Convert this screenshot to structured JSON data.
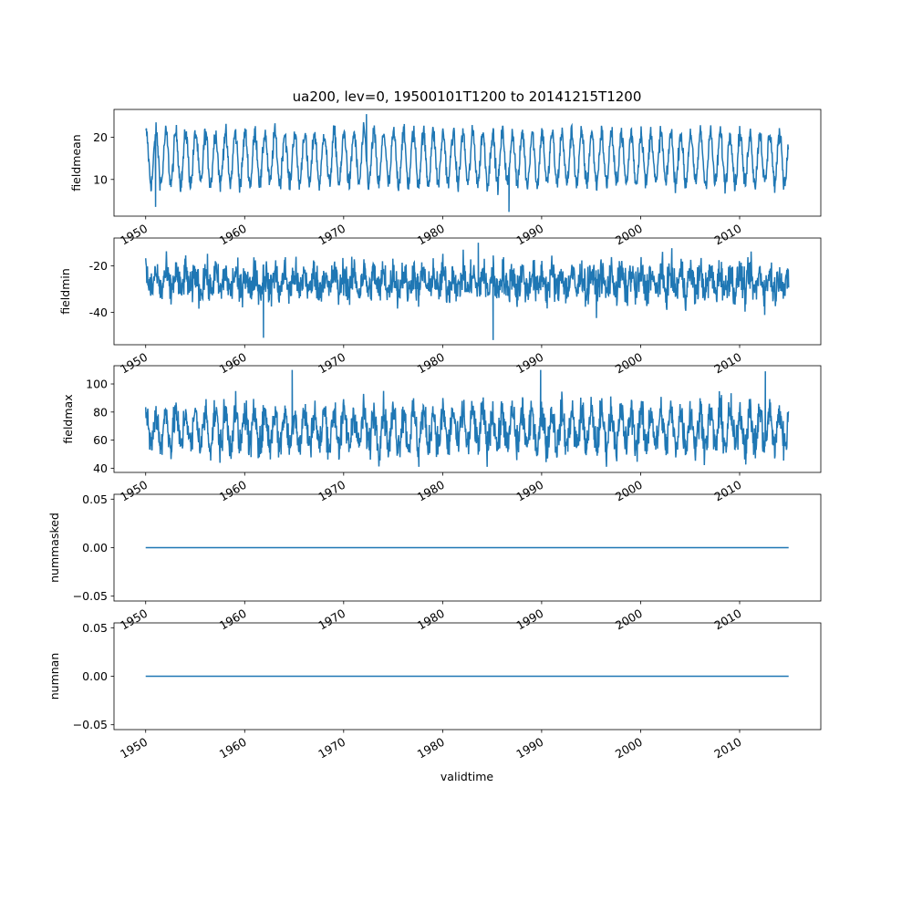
{
  "figure": {
    "title": "ua200, lev=0, 19500101T1200 to 20141215T1200",
    "xlabel": "validtime"
  },
  "chart_data": [
    {
      "type": "line",
      "ylabel": "fieldmean",
      "color": "#1f77b4",
      "xlim": [
        1946.8,
        2018.2
      ],
      "ylim": [
        1.3,
        26.6
      ],
      "yticks": [
        10,
        20
      ],
      "x_ticks": [
        "1950",
        "1960",
        "1970",
        "1980",
        "1990",
        "2000",
        "2010"
      ],
      "series": [
        {
          "x_range": [
            1950.0,
            2014.95
          ],
          "mean": 15,
          "seasonal_amplitude": 6,
          "min": 2.3,
          "max": 25.5,
          "values_note": "daily values 1950-01-01 to 2014-12-15"
        }
      ]
    },
    {
      "type": "line",
      "ylabel": "fieldmin",
      "color": "#1f77b4",
      "xlim": [
        1946.8,
        2018.2
      ],
      "ylim": [
        -54,
        -8
      ],
      "yticks": [
        -40,
        -20
      ],
      "x_ticks": [
        "1950",
        "1960",
        "1970",
        "1980",
        "1990",
        "2000",
        "2010"
      ],
      "series": [
        {
          "x_range": [
            1950.0,
            2014.95
          ],
          "mean": -27,
          "seasonal_amplitude": 4,
          "min": -52,
          "max": -10
        }
      ]
    },
    {
      "type": "line",
      "ylabel": "fieldmax",
      "color": "#1f77b4",
      "xlim": [
        1946.8,
        2018.2
      ],
      "ylim": [
        37,
        113
      ],
      "yticks": [
        40,
        60,
        80,
        100
      ],
      "x_ticks": [
        "1950",
        "1960",
        "1970",
        "1980",
        "1990",
        "2000",
        "2010"
      ],
      "series": [
        {
          "x_range": [
            1950.0,
            2014.95
          ],
          "mean": 68,
          "seasonal_amplitude": 12,
          "min": 41,
          "max": 110
        }
      ]
    },
    {
      "type": "line",
      "ylabel": "nummasked",
      "color": "#1f77b4",
      "xlim": [
        1946.8,
        2018.2
      ],
      "ylim": [
        -0.055,
        0.055
      ],
      "yticks": [
        -0.05,
        0.0,
        0.05
      ],
      "ytick_labels": [
        "−0.05",
        "0.00",
        "0.05"
      ],
      "x_ticks": [
        "1950",
        "1960",
        "1970",
        "1980",
        "1990",
        "2000",
        "2010"
      ],
      "series": [
        {
          "x": [
            1950.0,
            2014.95
          ],
          "y": [
            0.0,
            0.0
          ]
        }
      ]
    },
    {
      "type": "line",
      "ylabel": "numnan",
      "color": "#1f77b4",
      "xlim": [
        1946.8,
        2018.2
      ],
      "ylim": [
        -0.055,
        0.055
      ],
      "yticks": [
        -0.05,
        0.0,
        0.05
      ],
      "ytick_labels": [
        "−0.05",
        "0.00",
        "0.05"
      ],
      "x_ticks": [
        "1950",
        "1960",
        "1970",
        "1980",
        "1990",
        "2000",
        "2010"
      ],
      "series": [
        {
          "x": [
            1950.0,
            2014.95
          ],
          "y": [
            0.0,
            0.0
          ]
        }
      ]
    }
  ]
}
